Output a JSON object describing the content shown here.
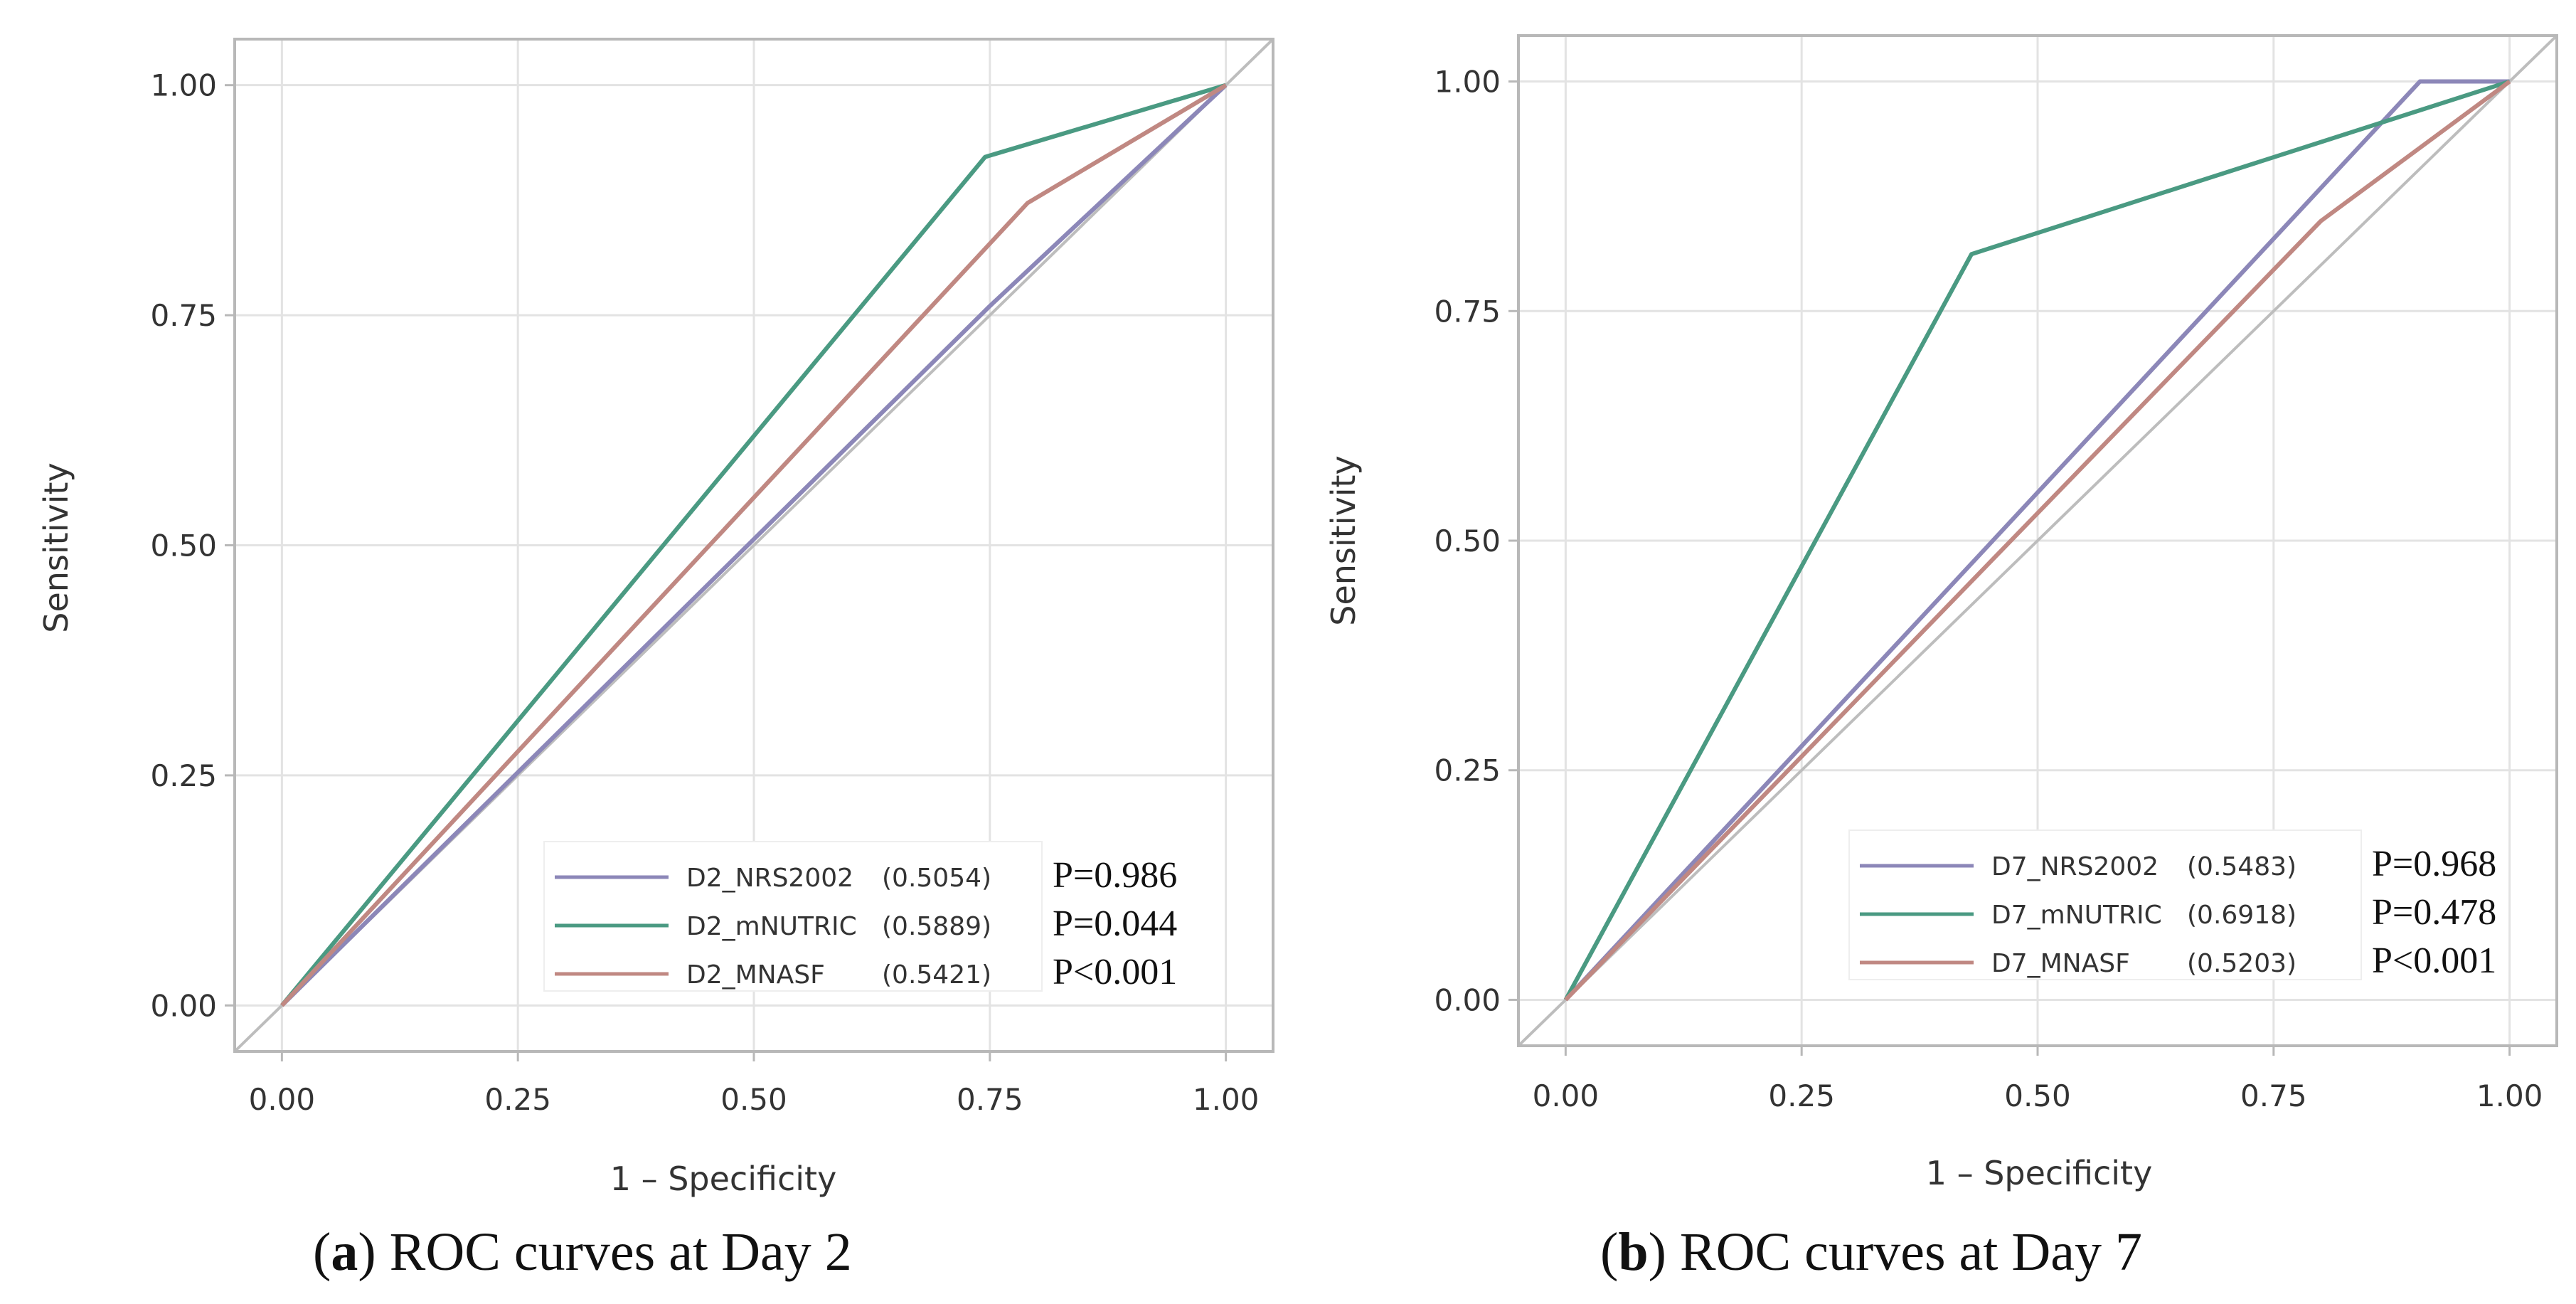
{
  "chart_data": [
    {
      "type": "line",
      "id": "a",
      "caption_letter": "a",
      "caption_text": " ROC curves at Day 2",
      "xlabel": "1 – Specificity",
      "ylabel": "Sensitivity",
      "xlim": [
        -0.05,
        1.05
      ],
      "ylim": [
        -0.05,
        1.05
      ],
      "xticks": [
        "0.00",
        "0.25",
        "0.50",
        "0.75",
        "1.00"
      ],
      "yticks": [
        "0.00",
        "0.25",
        "0.50",
        "0.75",
        "1.00"
      ],
      "grid": true,
      "reference_line": "diagonal",
      "legend_position": "bottom-right",
      "series": [
        {
          "name": "D2_NRS2002",
          "auc": "(0.5054)",
          "p": "P=0.986",
          "color": "#8C87B8",
          "x": [
            0,
            0.75,
            1.0
          ],
          "y": [
            0,
            0.76,
            1.0
          ]
        },
        {
          "name": "D2_mNUTRIC",
          "auc": "(0.5889)",
          "p": "P=0.044",
          "color": "#4A9A82",
          "x": [
            0,
            0.745,
            1.0
          ],
          "y": [
            0,
            0.922,
            1.0
          ]
        },
        {
          "name": "D2_MNASF",
          "auc": "(0.5421)",
          "p": "P<0.001",
          "color": "#C08882",
          "x": [
            0,
            0.79,
            1.0
          ],
          "y": [
            0,
            0.872,
            1.0
          ]
        }
      ]
    },
    {
      "type": "line",
      "id": "b",
      "caption_letter": "b",
      "caption_text": " ROC curves at Day 7",
      "xlabel": "1 – Specificity",
      "ylabel": "Sensitivity",
      "xlim": [
        -0.05,
        1.05
      ],
      "ylim": [
        -0.05,
        1.05
      ],
      "xticks": [
        "0.00",
        "0.25",
        "0.50",
        "0.75",
        "1.00"
      ],
      "yticks": [
        "0.00",
        "0.25",
        "0.50",
        "0.75",
        "1.00"
      ],
      "grid": true,
      "reference_line": "diagonal",
      "legend_position": "bottom-right",
      "series": [
        {
          "name": "D7_NRS2002",
          "auc": "(0.5483)",
          "p": "P=0.968",
          "color": "#8C87B8",
          "x": [
            0,
            0.905,
            1.0
          ],
          "y": [
            0,
            1.0,
            1.0
          ]
        },
        {
          "name": "D7_mNUTRIC",
          "auc": "(0.6918)",
          "p": "P=0.478",
          "color": "#4A9A82",
          "x": [
            0,
            0.43,
            1.0
          ],
          "y": [
            0,
            0.812,
            1.0
          ]
        },
        {
          "name": "D7_MNASF",
          "auc": "(0.5203)",
          "p": "P<0.001",
          "color": "#C08882",
          "x": [
            0,
            0.8,
            1.0
          ],
          "y": [
            0,
            0.848,
            1.0
          ]
        }
      ]
    }
  ],
  "colors": {
    "grid": "#e3e3e3",
    "frame": "#b8b8b8",
    "reference": "#bdbdbd"
  }
}
